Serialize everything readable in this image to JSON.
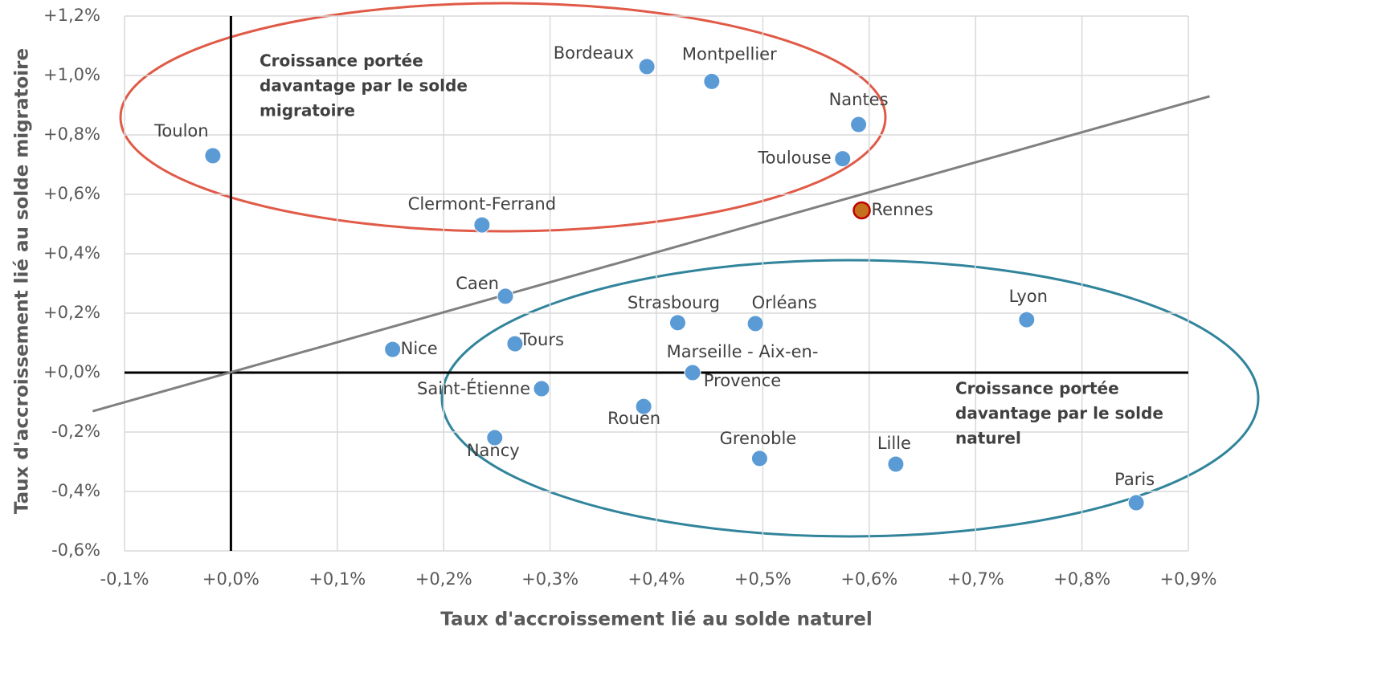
{
  "chart_data": {
    "type": "scatter",
    "x_label": "Taux d'accroissement lié au solde naturel",
    "y_label": "Taux d'accroissement lié au solde migratoire",
    "xlim": [
      -0.1,
      0.9
    ],
    "ylim": [
      -0.6,
      1.2
    ],
    "xticks": [
      {
        "value": -0.1,
        "label": "-0,1%"
      },
      {
        "value": 0,
        "label": "+0,0%"
      },
      {
        "value": 0.1,
        "label": "+0,1%"
      },
      {
        "value": 0.2,
        "label": "+0,2%"
      },
      {
        "value": 0.3,
        "label": "+0,3%"
      },
      {
        "value": 0.4,
        "label": "+0,4%"
      },
      {
        "value": 0.5,
        "label": "+0,5%"
      },
      {
        "value": 0.6,
        "label": "+0,6%"
      },
      {
        "value": 0.7,
        "label": "+0,7%"
      },
      {
        "value": 0.8,
        "label": "+0,8%"
      },
      {
        "value": 0.9,
        "label": "+0,9%"
      }
    ],
    "yticks": [
      {
        "value": -0.6,
        "label": "-0,6%"
      },
      {
        "value": -0.4,
        "label": "-0,4%"
      },
      {
        "value": -0.2,
        "label": "-0,2%"
      },
      {
        "value": 0,
        "label": "+0,0%"
      },
      {
        "value": 0.2,
        "label": "+0,2%"
      },
      {
        "value": 0.4,
        "label": "+0,4%"
      },
      {
        "value": 0.6,
        "label": "+0,6%"
      },
      {
        "value": 0.8,
        "label": "+0,8%"
      },
      {
        "value": 1.0,
        "label": "+1,0%"
      },
      {
        "value": 1.2,
        "label": "+1,2%"
      }
    ],
    "grid": true,
    "color": "#5b9bd5",
    "highlight": {
      "index": 5,
      "color": "#c5701f",
      "edge": "#c00000"
    },
    "labels": [
      "Toulon",
      "Bordeaux",
      "Montpellier",
      "Nantes",
      "Toulouse",
      "Rennes",
      "Clermont-Ferrand",
      "Caen",
      "Strasbourg",
      "Orléans",
      "Lyon",
      "Nice",
      "Tours",
      [
        "Marseille - Aix-en-",
        "Provence"
      ],
      "Saint-Étienne",
      "Rouen",
      "Nancy",
      "Grenoble",
      "Lille",
      "Paris"
    ],
    "x": [
      -0.017,
      0.391,
      0.452,
      0.59,
      0.575,
      0.593,
      0.236,
      0.258,
      0.42,
      0.493,
      0.748,
      0.152,
      0.267,
      0.434,
      0.292,
      0.388,
      0.248,
      0.497,
      0.625,
      0.851
    ],
    "y": [
      0.73,
      1.03,
      0.98,
      0.835,
      0.72,
      0.546,
      0.497,
      0.257,
      0.168,
      0.165,
      0.178,
      0.078,
      0.097,
      0.0,
      -0.054,
      -0.114,
      -0.219,
      -0.289,
      -0.308,
      -0.438
    ],
    "reference_line": {
      "x": [
        -0.13,
        0.92
      ],
      "y": [
        -0.13,
        0.93
      ],
      "color": "#808080"
    },
    "annotations": [
      {
        "text": [
          "Croissance portée",
          "davantage par le solde",
          "migratoire"
        ],
        "color": "#e05a47"
      },
      {
        "text": [
          "Croissance portée",
          "davantage par le solde",
          "naturel"
        ],
        "color": "#31849b"
      }
    ]
  }
}
